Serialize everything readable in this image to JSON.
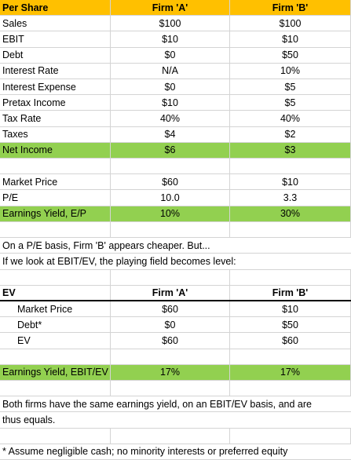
{
  "per_share_table": {
    "header": [
      "Per Share",
      "Firm 'A'",
      "Firm 'B'"
    ],
    "rows": [
      [
        "Sales",
        "$100",
        "$100"
      ],
      [
        "EBIT",
        "$10",
        "$10"
      ],
      [
        "Debt",
        "$0",
        "$50"
      ],
      [
        "Interest Rate",
        "N/A",
        "10%"
      ],
      [
        "Interest Expense",
        "$0",
        "$5"
      ],
      [
        "Pretax Income",
        "$10",
        "$5"
      ],
      [
        "Tax Rate",
        "40%",
        "40%"
      ],
      [
        "Taxes",
        "$4",
        "$2"
      ],
      [
        "Net Income",
        "$6",
        "$3"
      ]
    ]
  },
  "valuation_table": {
    "rows": [
      [
        "Market Price",
        "$60",
        "$10"
      ],
      [
        "P/E",
        "10.0",
        "3.3"
      ],
      [
        "Earnings Yield, E/P",
        "10%",
        "30%"
      ]
    ]
  },
  "note_1": [
    "On a P/E basis, Firm 'B' appears cheaper.  But...",
    "If we look at EBIT/EV, the playing field becomes level:"
  ],
  "ev_table": {
    "header": [
      "EV",
      "Firm 'A'",
      "Firm 'B'"
    ],
    "rows": [
      [
        "Market Price",
        "$60",
        "$10"
      ],
      [
        "Debt*",
        "$0",
        "$50"
      ],
      [
        "EV",
        "$60",
        "$60"
      ]
    ]
  },
  "ev_yield_row": [
    "Earnings Yield, EBIT/EV",
    "17%",
    "17%"
  ],
  "note_2": [
    "Both firms have the same earnings yield, on an EBIT/EV basis, and are",
    "thus equals."
  ],
  "footnote": "* Assume negligible cash; no minority interests or preferred equity"
}
